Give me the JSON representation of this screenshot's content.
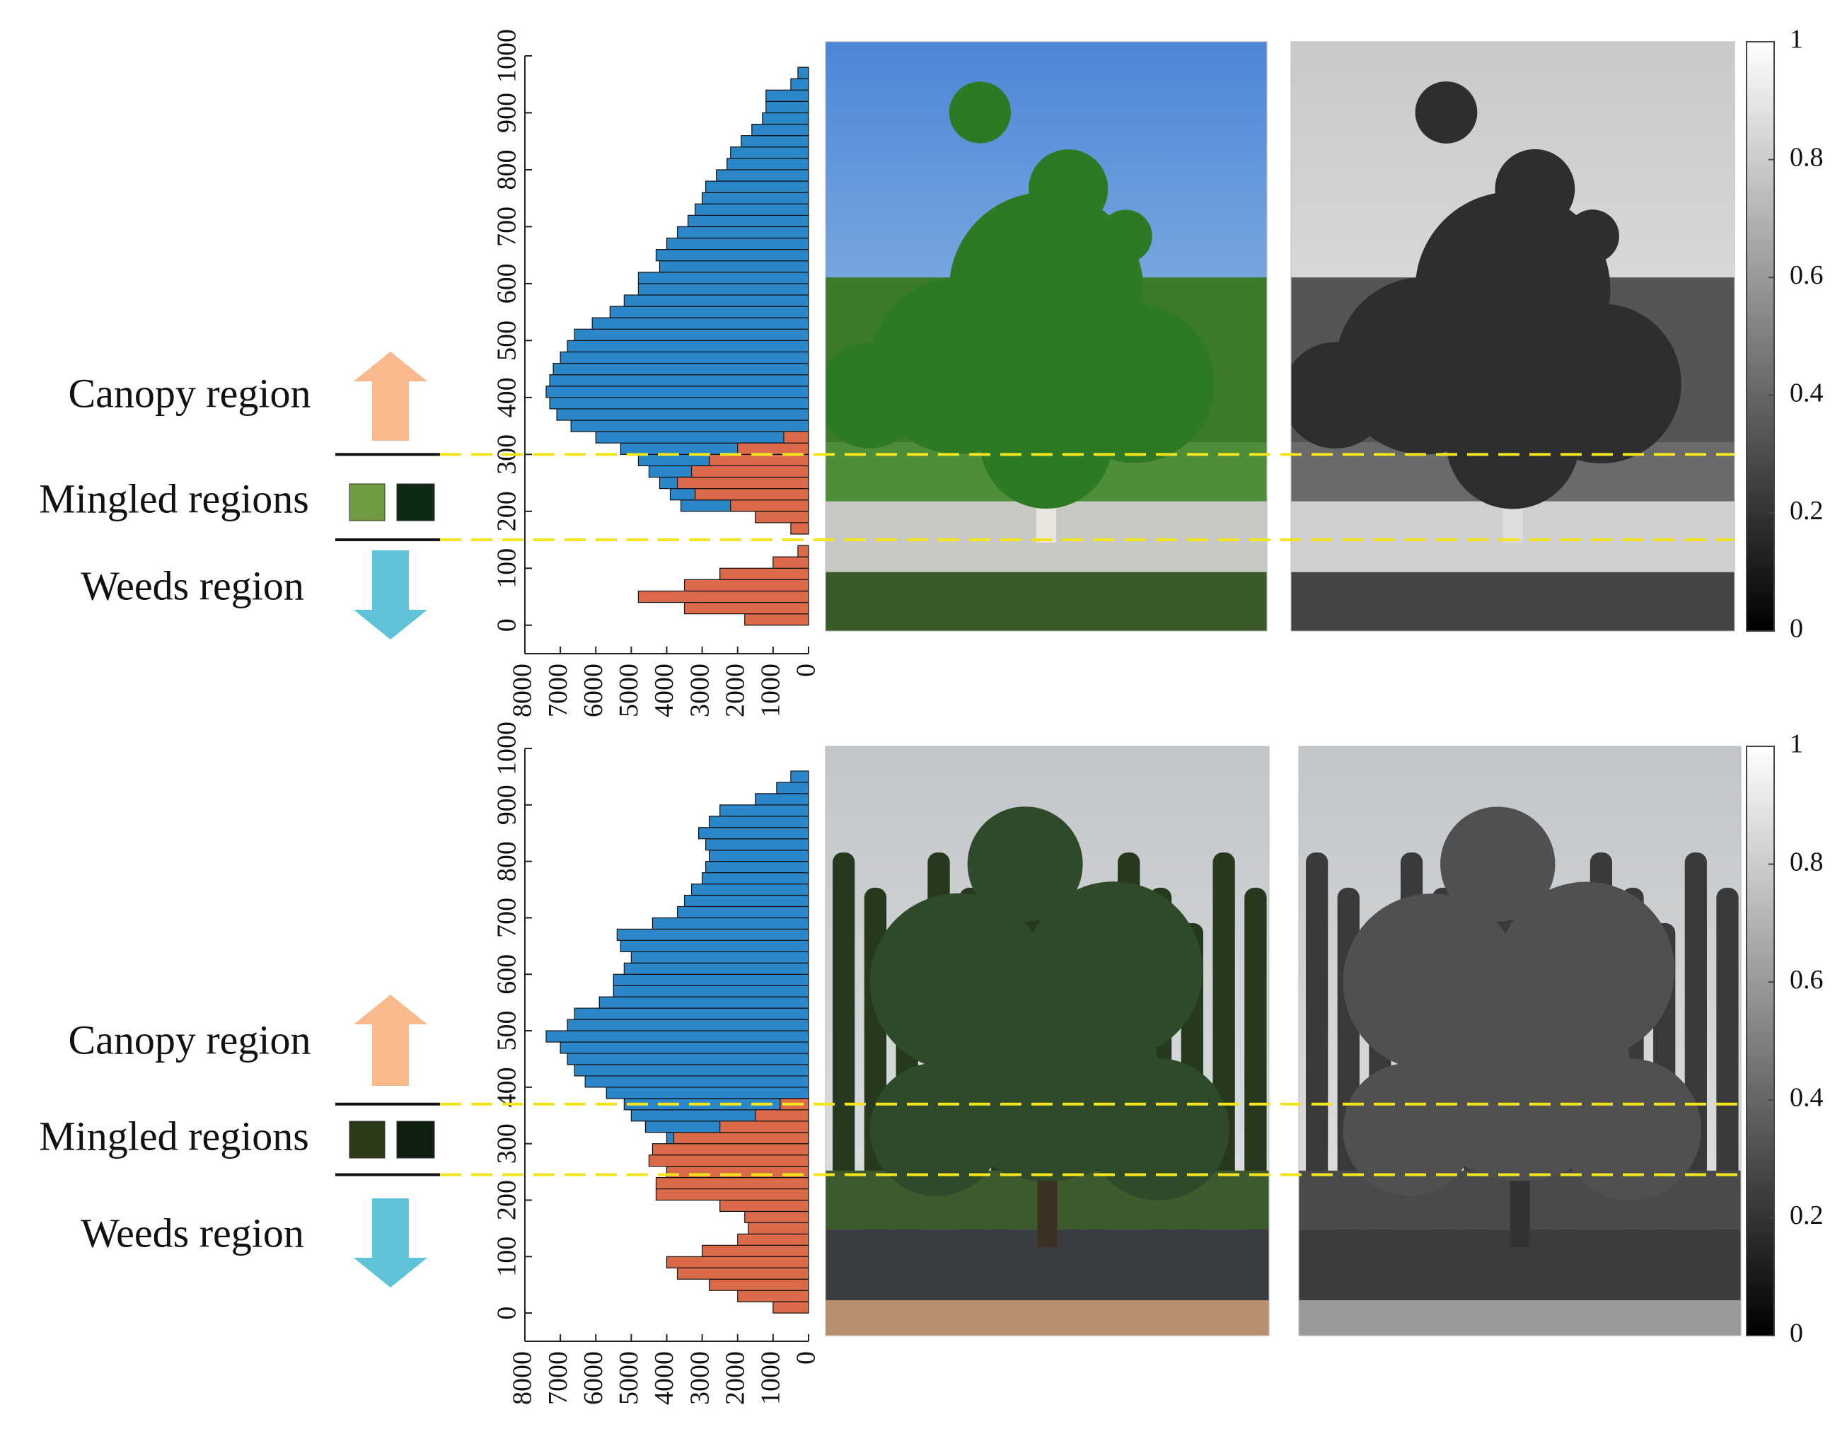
{
  "chart_data": [
    {
      "type": "histogram",
      "orientation": "horizontal",
      "canopy_label": "Canopy region",
      "mingled_label": "Mingled regions",
      "weeds_label": "Weeds region",
      "bins": [
        0,
        20,
        40,
        60,
        80,
        100,
        120,
        140,
        160,
        180,
        200,
        220,
        240,
        260,
        280,
        300,
        320,
        340,
        360,
        380,
        400,
        420,
        440,
        460,
        480,
        500,
        520,
        540,
        560,
        580,
        600,
        620,
        640,
        660,
        680,
        700,
        720,
        740,
        760,
        780,
        800,
        820,
        840,
        860,
        880,
        900,
        920,
        940,
        960,
        980,
        1000
      ],
      "series": [
        {
          "color": "#2b87c8",
          "values": [
            0,
            0,
            0,
            0,
            0,
            0,
            0,
            0,
            0,
            0,
            3600,
            3900,
            4200,
            4500,
            4800,
            5300,
            6000,
            6700,
            7100,
            7300,
            7400,
            7300,
            7200,
            7000,
            6800,
            6600,
            6100,
            5600,
            5200,
            4800,
            4800,
            4200,
            4300,
            4000,
            3700,
            3400,
            3200,
            3000,
            2900,
            2600,
            2300,
            2200,
            1900,
            1600,
            1300,
            1200,
            1200,
            500,
            300,
            0
          ]
        },
        {
          "color": "#db6a4b",
          "values": [
            1800,
            3500,
            4800,
            3500,
            2500,
            1000,
            300,
            0,
            500,
            1500,
            2200,
            3200,
            3700,
            3300,
            2800,
            2000,
            700,
            0,
            0,
            0,
            0,
            0,
            0,
            0,
            0,
            0,
            0,
            0,
            0,
            0,
            0,
            0,
            0,
            0,
            0,
            0,
            0,
            0,
            0,
            0,
            0,
            0,
            0,
            0,
            0,
            0,
            0,
            0,
            0,
            0
          ]
        }
      ],
      "xlim": [
        8000,
        0
      ],
      "xticks": [
        0,
        1000,
        2000,
        3000,
        4000,
        5000,
        6000,
        7000,
        8000
      ],
      "ylim": [
        -50,
        1000
      ],
      "yticks": [
        0,
        100,
        200,
        300,
        400,
        500,
        600,
        700,
        800,
        900,
        1000
      ],
      "region_bounds": [
        300,
        150
      ],
      "colorbar": {
        "lim": [
          0,
          1
        ],
        "ticks": [
          0,
          0.2,
          0.4,
          0.6,
          0.8,
          1
        ]
      }
    },
    {
      "type": "histogram",
      "orientation": "horizontal",
      "canopy_label": "Canopy region",
      "mingled_label": "Mingled regions",
      "weeds_label": "Weeds region",
      "bins": [
        0,
        20,
        40,
        60,
        80,
        100,
        120,
        140,
        160,
        180,
        200,
        220,
        240,
        260,
        280,
        300,
        320,
        340,
        360,
        380,
        400,
        420,
        440,
        460,
        480,
        500,
        520,
        540,
        560,
        580,
        600,
        620,
        640,
        660,
        680,
        700,
        720,
        740,
        760,
        780,
        800,
        820,
        840,
        860,
        880,
        900,
        920,
        940,
        960,
        980,
        1000
      ],
      "series": [
        {
          "color": "#2b87c8",
          "values": [
            0,
            0,
            0,
            0,
            0,
            0,
            0,
            0,
            0,
            0,
            0,
            0,
            0,
            0,
            0,
            4000,
            4600,
            5000,
            5200,
            5700,
            6300,
            6600,
            6800,
            7000,
            7400,
            6800,
            6600,
            5900,
            5500,
            5500,
            5200,
            5000,
            5300,
            5400,
            4400,
            3700,
            3500,
            3300,
            3000,
            2900,
            2800,
            2900,
            3100,
            2800,
            2500,
            1500,
            900,
            500,
            0,
            0
          ]
        },
        {
          "color": "#db6a4b",
          "values": [
            1000,
            2000,
            2800,
            3700,
            4000,
            3000,
            2000,
            1700,
            1800,
            2500,
            4300,
            4300,
            4000,
            4500,
            4400,
            3800,
            2500,
            1500,
            800,
            0,
            0,
            0,
            0,
            0,
            0,
            0,
            0,
            0,
            0,
            0,
            0,
            0,
            0,
            0,
            0,
            0,
            0,
            0,
            0,
            0,
            0,
            0,
            0,
            0,
            0,
            0,
            0,
            0,
            0,
            0
          ]
        }
      ],
      "xlim": [
        8000,
        0
      ],
      "xticks": [
        0,
        1000,
        2000,
        3000,
        4000,
        5000,
        6000,
        7000,
        8000
      ],
      "ylim": [
        -50,
        1000
      ],
      "yticks": [
        0,
        100,
        200,
        300,
        400,
        500,
        600,
        700,
        800,
        900,
        1000
      ],
      "region_bounds": [
        370,
        245
      ],
      "colorbar": {
        "lim": [
          0,
          1
        ],
        "ticks": [
          0,
          0.2,
          0.4,
          0.6,
          0.8,
          1
        ]
      }
    }
  ]
}
